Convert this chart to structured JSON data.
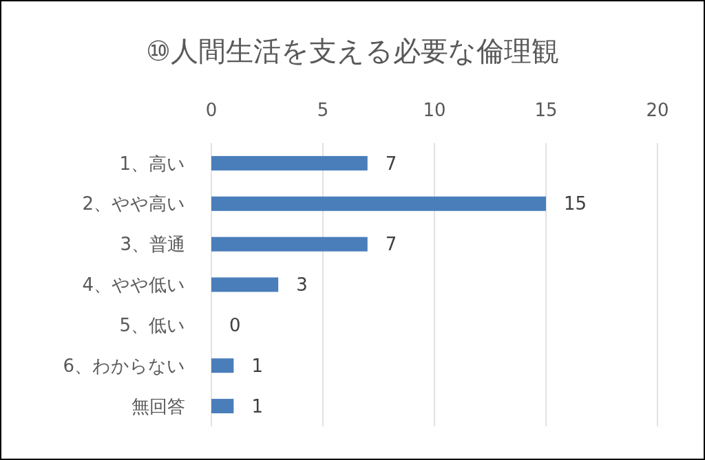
{
  "chart_data": {
    "type": "bar",
    "orientation": "horizontal",
    "title": "⑩人間生活を支える必要な倫理観",
    "categories": [
      "1、高い",
      "2、やや高い",
      "3、普通",
      "4、やや低い",
      "5、低い",
      "6、わからない",
      "無回答"
    ],
    "values": [
      7,
      15,
      7,
      3,
      0,
      1,
      1
    ],
    "color": "#4a7ebb",
    "xlim": [
      0,
      20
    ],
    "xticks": [
      0,
      5,
      10,
      15,
      20
    ],
    "grid": "x",
    "data_labels": true
  }
}
